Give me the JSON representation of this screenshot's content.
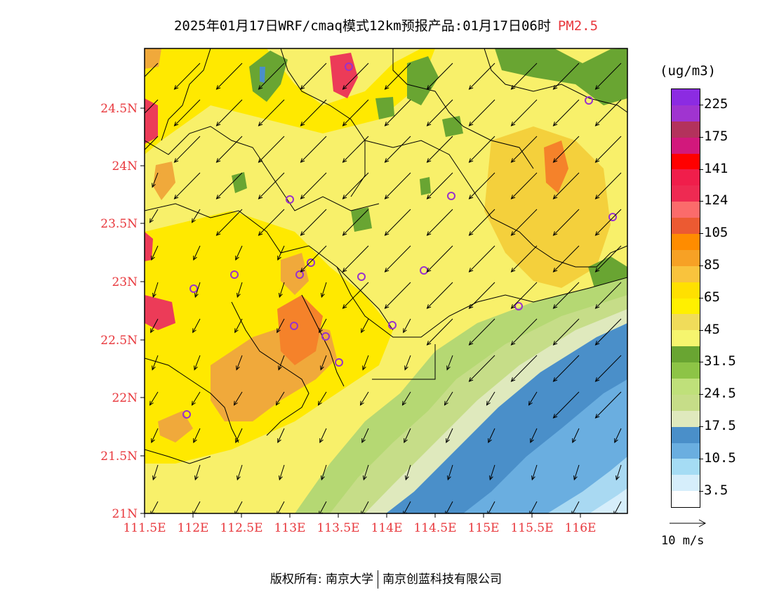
{
  "header": {
    "title": "2025年01月17日WRF/cmaq模式12km预报产品:01月17日06时",
    "pollutant": "PM2.5"
  },
  "map": {
    "lat_labels": [
      "24.5N",
      "24N",
      "23.5N",
      "23N",
      "22.5N",
      "22N",
      "21.5N",
      "21N"
    ],
    "lon_labels": [
      "111.5E",
      "112E",
      "112.5E",
      "113E",
      "113.5E",
      "114E",
      "114.5E",
      "115E",
      "115.5E",
      "116E"
    ],
    "land_color": "#f8f06a",
    "sea_colors": {
      "deep": "#4a8fc9",
      "mid": "#6aaee0",
      "light": "#a9d9f2",
      "shelf": "#dce9b9",
      "coast": "#b5d873"
    },
    "hotspot_colors": [
      "#ffe900",
      "#f4d03c",
      "#f0a93b",
      "#f5822a",
      "#ec3b58",
      "#c81a7a"
    ],
    "station_color": "#9932cc"
  },
  "legend": {
    "unit": "(ug/m3)",
    "bins": [
      {
        "color": "#8c2be2"
      },
      {
        "color": "#a034d0"
      },
      {
        "color": "#b3325c"
      },
      {
        "color": "#d2187c"
      },
      {
        "color": "#ff0000"
      },
      {
        "color": "#f01e4b"
      },
      {
        "color": "#ee2a52"
      },
      {
        "color": "#fb6b6b"
      },
      {
        "color": "#ec5a32"
      },
      {
        "color": "#ff8c00"
      },
      {
        "color": "#f7a125"
      },
      {
        "color": "#f9c33d"
      },
      {
        "color": "#ffe000"
      },
      {
        "color": "#fff000"
      },
      {
        "color": "#f0dc5a"
      },
      {
        "color": "#f6f56e"
      },
      {
        "color": "#69a532"
      },
      {
        "color": "#8dc446"
      },
      {
        "color": "#bfe07a"
      },
      {
        "color": "#c6dd88"
      },
      {
        "color": "#dfe9bd"
      },
      {
        "color": "#4a8fc9"
      },
      {
        "color": "#6aaee0"
      },
      {
        "color": "#a5dcf4"
      },
      {
        "color": "#d6eefb"
      },
      {
        "color": "#ffffff"
      }
    ],
    "labels": [
      "225",
      "175",
      "141",
      "124",
      "105",
      "85",
      "65",
      "45",
      "31.5",
      "24.5",
      "17.5",
      "10.5",
      "3.5"
    ]
  },
  "wind_reference": {
    "label": "10 m/s"
  },
  "footer": {
    "copyright_left": "版权所有: 南京大学",
    "copyright_right": "南京创蓝科技有限公司"
  }
}
